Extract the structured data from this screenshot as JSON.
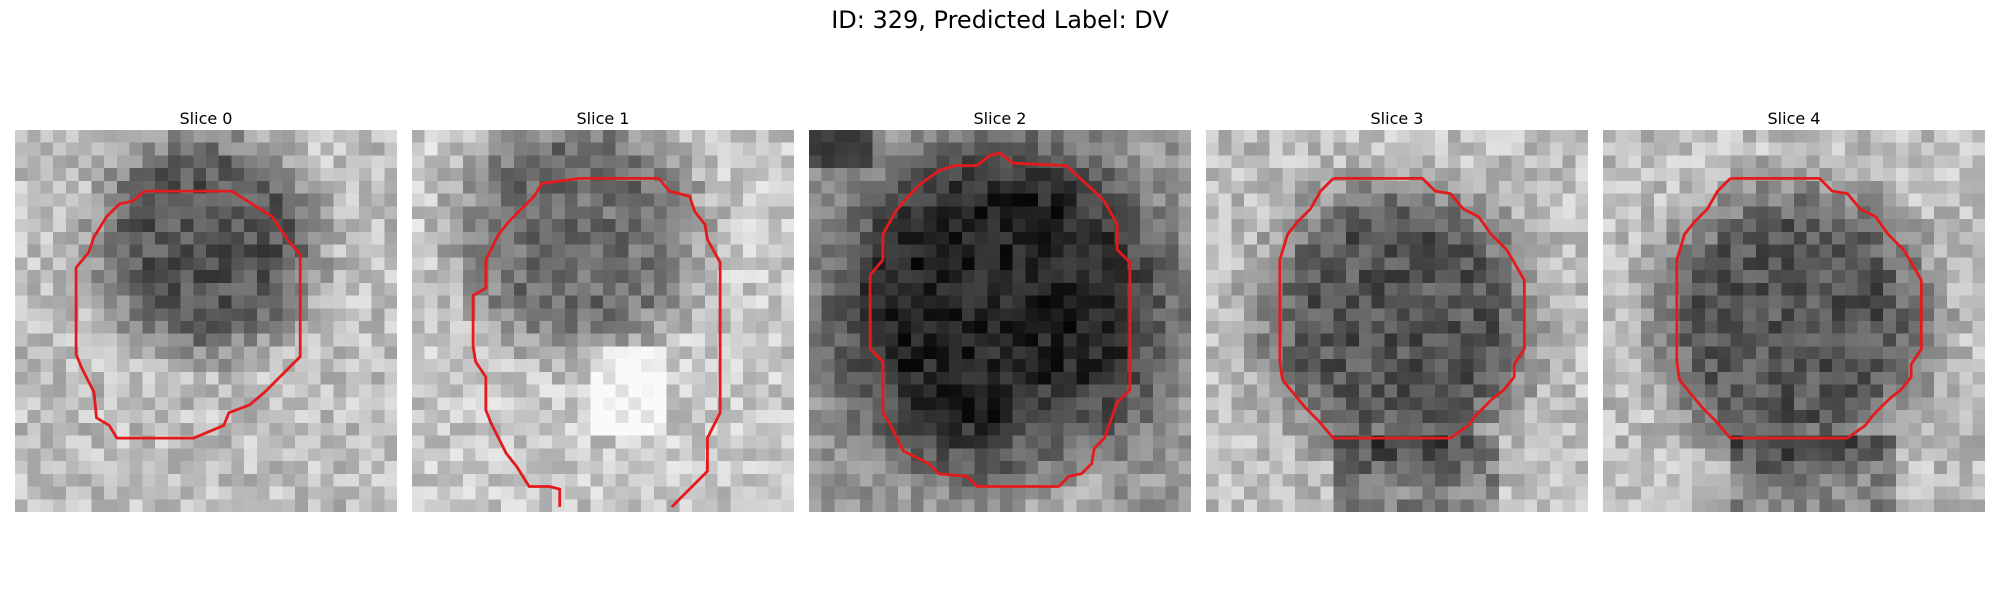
{
  "figure": {
    "title": "ID: 329, Predicted Label: DV"
  },
  "panels": [
    {
      "title": "Slice 0",
      "image": {
        "shade": "mixed",
        "dark_center": [
          15,
          9
        ],
        "dark_radius": 8
      },
      "contour_color": "#e41a1c"
    },
    {
      "title": "Slice 1",
      "image": {
        "shade": "light",
        "dark_center": [
          13,
          8
        ],
        "dark_radius": 9
      },
      "contour_color": "#e41a1c"
    },
    {
      "title": "Slice 2",
      "image": {
        "shade": "dark",
        "dark_center": [
          15,
          14
        ],
        "dark_radius": 12
      },
      "contour_color": "#e41a1c"
    },
    {
      "title": "Slice 3",
      "image": {
        "shade": "mixed",
        "dark_center": [
          15,
          15
        ],
        "dark_radius": 10
      },
      "contour_color": "#e41a1c"
    },
    {
      "title": "Slice 4",
      "image": {
        "shade": "mixed",
        "dark_center": [
          15,
          15
        ],
        "dark_radius": 10
      },
      "contour_color": "#e41a1c"
    }
  ],
  "colors": {
    "background": "#ffffff",
    "contour": "#e41a1c"
  }
}
